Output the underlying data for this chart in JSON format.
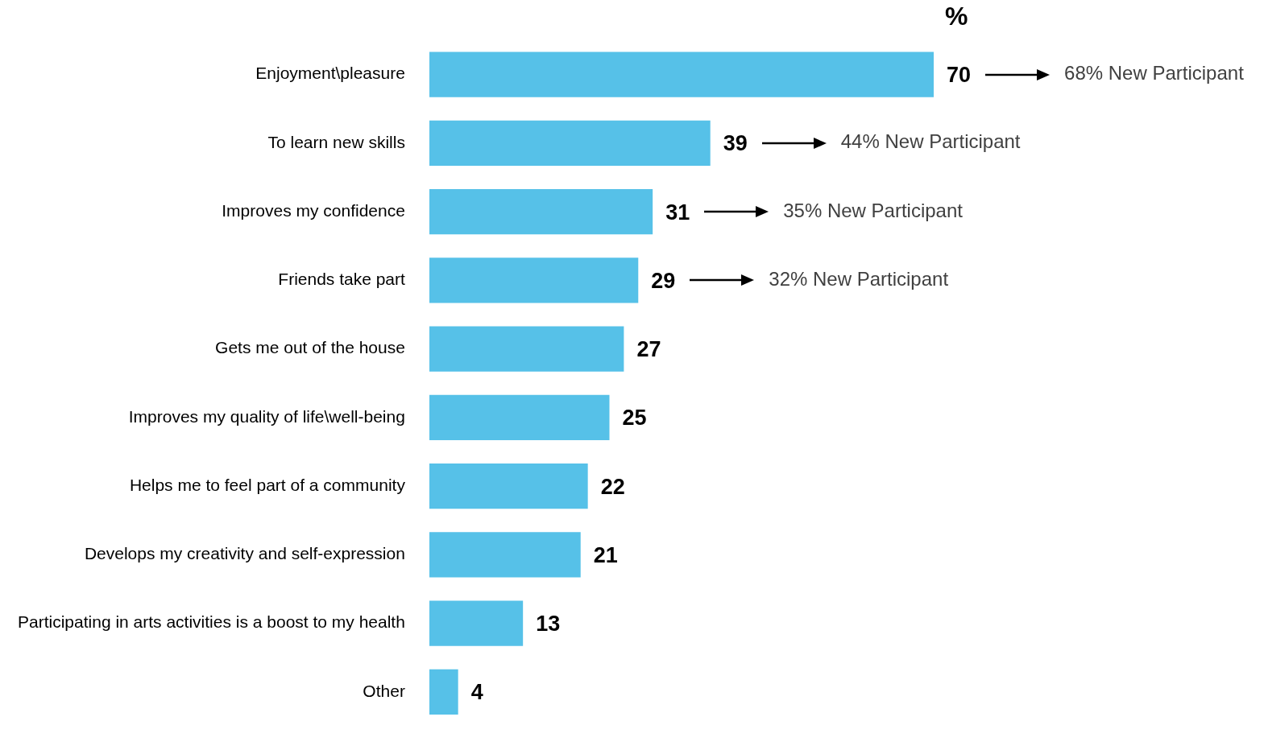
{
  "chart_data": {
    "type": "bar",
    "orientation": "horizontal",
    "title": "%",
    "categories": [
      "Enjoyment\\pleasure",
      "To learn new skills",
      "Improves my confidence",
      "Friends take part",
      "Gets me out of the house",
      "Improves my quality of life\\well-being",
      "Helps me to feel part of a community",
      "Develops my creativity and self-expression",
      "Participating in arts activities is a boost to my health",
      "Other"
    ],
    "values": [
      70,
      39,
      31,
      29,
      27,
      25,
      22,
      21,
      13,
      4
    ],
    "color": "#56c1e8",
    "data_labels": true,
    "annotations": [
      "68% New Participant",
      "44% New Participant",
      "35% New Participant",
      "32% New Participant"
    ]
  }
}
